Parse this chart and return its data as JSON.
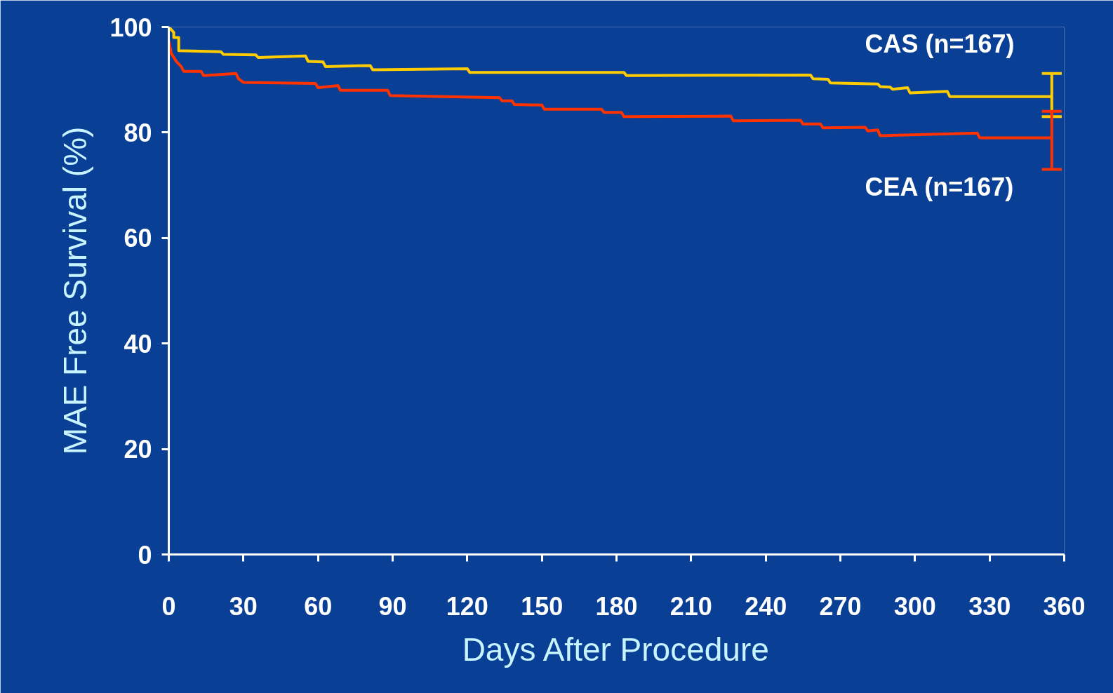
{
  "chart_data": {
    "type": "line",
    "xlabel": "Days After Procedure",
    "ylabel": "MAE Free Survival (%)",
    "xlim": [
      0,
      360
    ],
    "xticks": [
      0,
      30,
      60,
      90,
      120,
      150,
      180,
      210,
      240,
      270,
      300,
      330,
      360
    ],
    "ylim": [
      0,
      100
    ],
    "yticks": [
      0,
      20,
      40,
      60,
      80,
      100
    ],
    "grid": false,
    "legend": false,
    "marker": "none",
    "line_style": "solid",
    "series": [
      {
        "name": "CAS (n=167)",
        "color": "#ffcc00",
        "x": [
          0,
          2,
          2,
          4,
          4,
          21,
          22,
          35,
          36,
          55,
          56,
          62,
          63,
          81,
          82,
          120,
          121,
          183,
          184,
          258,
          259,
          265,
          266,
          285,
          286,
          290,
          291,
          297,
          298,
          313,
          314,
          355
        ],
        "values": [
          100,
          99,
          98,
          98,
          95.5,
          95.3,
          94.8,
          94.7,
          94.2,
          94.5,
          93.5,
          93.4,
          92.5,
          92.7,
          91.9,
          92.1,
          91.4,
          91.4,
          90.8,
          90.9,
          90.2,
          90.1,
          89.4,
          89.2,
          88.7,
          88.6,
          88.2,
          88.5,
          87.5,
          87.8,
          86.8,
          86.8
        ],
        "errors": [
          null,
          null,
          null,
          null,
          null,
          null,
          null,
          null,
          null,
          null,
          null,
          null,
          null,
          null,
          null,
          null,
          null,
          null,
          null,
          null,
          null,
          null,
          null,
          null,
          null,
          null,
          null,
          null,
          null,
          null,
          null,
          [
            83,
            91.2
          ]
        ]
      },
      {
        "name": "CEA (n=167)",
        "color": "#ff3300",
        "x": [
          0,
          1,
          3,
          4,
          5,
          6,
          13,
          14,
          27,
          28,
          30,
          59,
          60,
          68,
          69,
          88,
          89,
          133,
          134,
          138,
          139,
          150,
          151,
          174,
          175,
          182,
          183,
          226,
          227,
          254,
          255,
          262,
          263,
          280,
          281,
          285,
          286,
          325,
          326,
          355
        ],
        "values": [
          97.5,
          95,
          93.5,
          93,
          92.5,
          91.6,
          91.6,
          90.8,
          91.2,
          90.2,
          89.5,
          89.3,
          88.5,
          88.9,
          88,
          88,
          87,
          86.6,
          86,
          86,
          85.3,
          85.2,
          84.4,
          84.4,
          83.8,
          83.8,
          83,
          83.1,
          82.2,
          82.3,
          81.6,
          81.6,
          80.9,
          81,
          80.3,
          80.5,
          79.4,
          79.9,
          79,
          79
        ],
        "errors": [
          null,
          null,
          null,
          null,
          null,
          null,
          null,
          null,
          null,
          null,
          null,
          null,
          null,
          null,
          null,
          null,
          null,
          null,
          null,
          null,
          null,
          null,
          null,
          null,
          null,
          null,
          null,
          null,
          null,
          null,
          null,
          null,
          null,
          null,
          null,
          null,
          null,
          null,
          null,
          [
            73,
            84
          ]
        ]
      }
    ]
  }
}
